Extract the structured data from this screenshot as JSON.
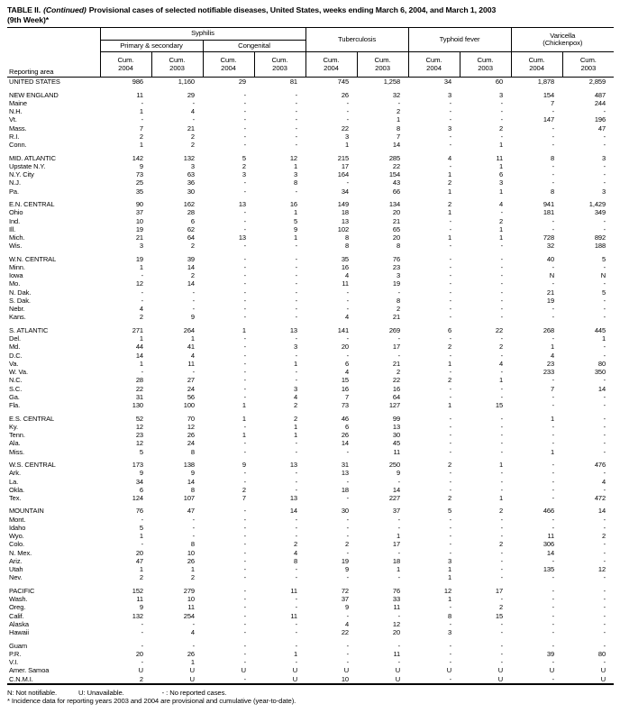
{
  "colors": {
    "text": "#000000",
    "background": "#ffffff",
    "border": "#000000"
  },
  "title": {
    "table_label": "TABLE II.",
    "continued": "(Continued)",
    "main": "Provisional cases of selected notifiable diseases, United States, weeks ending March 6, 2004, and March 1, 2003",
    "line2": "(9th Week)*"
  },
  "header": {
    "reporting_area": "Reporting area",
    "syphilis": "Syphilis",
    "primary_secondary": "Primary & secondary",
    "congenital": "Congenital",
    "tuberculosis": "Tuberculosis",
    "typhoid_fever": "Typhoid fever",
    "varicella_line1": "Varicella",
    "varicella_line2": "(Chickenpox)",
    "cum": "Cum.",
    "years": [
      "2004",
      "2003",
      "2004",
      "2003",
      "2004",
      "2003",
      "2004",
      "2003",
      "2004",
      "2003"
    ]
  },
  "sections": [
    {
      "rows": [
        {
          "area": "UNITED STATES",
          "summary": true,
          "v": [
            "986",
            "1,160",
            "29",
            "81",
            "745",
            "1,258",
            "34",
            "60",
            "1,878",
            "2,859"
          ]
        }
      ]
    },
    {
      "rows": [
        {
          "area": "NEW ENGLAND",
          "summary": true,
          "v": [
            "11",
            "29",
            "-",
            "-",
            "26",
            "32",
            "3",
            "3",
            "154",
            "487"
          ]
        },
        {
          "area": "Maine",
          "v": [
            "-",
            "-",
            "-",
            "-",
            "-",
            "-",
            "-",
            "-",
            "7",
            "244"
          ]
        },
        {
          "area": "N.H.",
          "v": [
            "1",
            "4",
            "-",
            "-",
            "-",
            "2",
            "-",
            "-",
            "-",
            "-"
          ]
        },
        {
          "area": "Vt.",
          "v": [
            "-",
            "-",
            "-",
            "-",
            "-",
            "1",
            "-",
            "-",
            "147",
            "196"
          ]
        },
        {
          "area": "Mass.",
          "v": [
            "7",
            "21",
            "-",
            "-",
            "22",
            "8",
            "3",
            "2",
            "-",
            "47"
          ]
        },
        {
          "area": "R.I.",
          "v": [
            "2",
            "2",
            "-",
            "-",
            "3",
            "7",
            "-",
            "-",
            "-",
            "-"
          ]
        },
        {
          "area": "Conn.",
          "v": [
            "1",
            "2",
            "-",
            "-",
            "1",
            "14",
            "-",
            "1",
            "-",
            "-"
          ]
        }
      ]
    },
    {
      "rows": [
        {
          "area": "MID. ATLANTIC",
          "summary": true,
          "v": [
            "142",
            "132",
            "5",
            "12",
            "215",
            "285",
            "4",
            "11",
            "8",
            "3"
          ]
        },
        {
          "area": "Upstate N.Y.",
          "v": [
            "9",
            "3",
            "2",
            "1",
            "17",
            "22",
            "-",
            "1",
            "-",
            "-"
          ]
        },
        {
          "area": "N.Y. City",
          "v": [
            "73",
            "63",
            "3",
            "3",
            "164",
            "154",
            "1",
            "6",
            "-",
            "-"
          ]
        },
        {
          "area": "N.J.",
          "v": [
            "25",
            "36",
            "-",
            "8",
            "-",
            "43",
            "2",
            "3",
            "-",
            "-"
          ]
        },
        {
          "area": "Pa.",
          "v": [
            "35",
            "30",
            "-",
            "-",
            "34",
            "66",
            "1",
            "1",
            "8",
            "3"
          ]
        }
      ]
    },
    {
      "rows": [
        {
          "area": "E.N. CENTRAL",
          "summary": true,
          "v": [
            "90",
            "162",
            "13",
            "16",
            "149",
            "134",
            "2",
            "4",
            "941",
            "1,429"
          ]
        },
        {
          "area": "Ohio",
          "v": [
            "37",
            "28",
            "-",
            "1",
            "18",
            "20",
            "1",
            "-",
            "181",
            "349"
          ]
        },
        {
          "area": "Ind.",
          "v": [
            "10",
            "6",
            "-",
            "5",
            "13",
            "21",
            "-",
            "2",
            "-",
            "-"
          ]
        },
        {
          "area": "Ill.",
          "v": [
            "19",
            "62",
            "-",
            "9",
            "102",
            "65",
            "-",
            "1",
            "-",
            "-"
          ]
        },
        {
          "area": "Mich.",
          "v": [
            "21",
            "64",
            "13",
            "1",
            "8",
            "20",
            "1",
            "1",
            "728",
            "892"
          ]
        },
        {
          "area": "Wis.",
          "v": [
            "3",
            "2",
            "-",
            "-",
            "8",
            "8",
            "-",
            "-",
            "32",
            "188"
          ]
        }
      ]
    },
    {
      "rows": [
        {
          "area": "W.N. CENTRAL",
          "summary": true,
          "v": [
            "19",
            "39",
            "-",
            "-",
            "35",
            "76",
            "-",
            "-",
            "40",
            "5"
          ]
        },
        {
          "area": "Minn.",
          "v": [
            "1",
            "14",
            "-",
            "-",
            "16",
            "23",
            "-",
            "-",
            "-",
            "-"
          ]
        },
        {
          "area": "Iowa",
          "v": [
            "-",
            "2",
            "-",
            "-",
            "4",
            "3",
            "-",
            "-",
            "N",
            "N"
          ]
        },
        {
          "area": "Mo.",
          "v": [
            "12",
            "14",
            "-",
            "-",
            "11",
            "19",
            "-",
            "-",
            "-",
            "-"
          ]
        },
        {
          "area": "N. Dak.",
          "v": [
            "-",
            "-",
            "-",
            "-",
            "-",
            "-",
            "-",
            "-",
            "21",
            "5"
          ]
        },
        {
          "area": "S. Dak.",
          "v": [
            "-",
            "-",
            "-",
            "-",
            "-",
            "8",
            "-",
            "-",
            "19",
            "-"
          ]
        },
        {
          "area": "Nebr.",
          "v": [
            "4",
            "-",
            "-",
            "-",
            "-",
            "2",
            "-",
            "-",
            "-",
            "-"
          ]
        },
        {
          "area": "Kans.",
          "v": [
            "2",
            "9",
            "-",
            "-",
            "4",
            "21",
            "-",
            "-",
            "-",
            "-"
          ]
        }
      ]
    },
    {
      "rows": [
        {
          "area": "S. ATLANTIC",
          "summary": true,
          "v": [
            "271",
            "264",
            "1",
            "13",
            "141",
            "269",
            "6",
            "22",
            "268",
            "445"
          ]
        },
        {
          "area": "Del.",
          "v": [
            "1",
            "1",
            "-",
            "-",
            "-",
            "-",
            "-",
            "-",
            "-",
            "1"
          ]
        },
        {
          "area": "Md.",
          "v": [
            "44",
            "41",
            "-",
            "3",
            "20",
            "17",
            "2",
            "2",
            "1",
            "-"
          ]
        },
        {
          "area": "D.C.",
          "v": [
            "14",
            "4",
            "-",
            "-",
            "-",
            "-",
            "-",
            "-",
            "4",
            "-"
          ]
        },
        {
          "area": "Va.",
          "v": [
            "1",
            "11",
            "-",
            "1",
            "6",
            "21",
            "1",
            "4",
            "23",
            "80"
          ]
        },
        {
          "area": "W. Va.",
          "v": [
            "-",
            "-",
            "-",
            "-",
            "4",
            "2",
            "-",
            "-",
            "233",
            "350"
          ]
        },
        {
          "area": "N.C.",
          "v": [
            "28",
            "27",
            "-",
            "-",
            "15",
            "22",
            "2",
            "1",
            "-",
            "-"
          ]
        },
        {
          "area": "S.C.",
          "v": [
            "22",
            "24",
            "-",
            "3",
            "16",
            "16",
            "-",
            "-",
            "7",
            "14"
          ]
        },
        {
          "area": "Ga.",
          "v": [
            "31",
            "56",
            "-",
            "4",
            "7",
            "64",
            "-",
            "-",
            "-",
            "-"
          ]
        },
        {
          "area": "Fla.",
          "v": [
            "130",
            "100",
            "1",
            "2",
            "73",
            "127",
            "1",
            "15",
            "-",
            "-"
          ]
        }
      ]
    },
    {
      "rows": [
        {
          "area": "E.S. CENTRAL",
          "summary": true,
          "v": [
            "52",
            "70",
            "1",
            "2",
            "46",
            "99",
            "-",
            "-",
            "1",
            "-"
          ]
        },
        {
          "area": "Ky.",
          "v": [
            "12",
            "12",
            "-",
            "1",
            "6",
            "13",
            "-",
            "-",
            "-",
            "-"
          ]
        },
        {
          "area": "Tenn.",
          "v": [
            "23",
            "26",
            "1",
            "1",
            "26",
            "30",
            "-",
            "-",
            "-",
            "-"
          ]
        },
        {
          "area": "Ala.",
          "v": [
            "12",
            "24",
            "-",
            "-",
            "14",
            "45",
            "-",
            "-",
            "-",
            "-"
          ]
        },
        {
          "area": "Miss.",
          "v": [
            "5",
            "8",
            "-",
            "-",
            "-",
            "11",
            "-",
            "-",
            "1",
            "-"
          ]
        }
      ]
    },
    {
      "rows": [
        {
          "area": "W.S. CENTRAL",
          "summary": true,
          "v": [
            "173",
            "138",
            "9",
            "13",
            "31",
            "250",
            "2",
            "1",
            "-",
            "476"
          ]
        },
        {
          "area": "Ark.",
          "v": [
            "9",
            "9",
            "-",
            "-",
            "13",
            "9",
            "-",
            "-",
            "-",
            "-"
          ]
        },
        {
          "area": "La.",
          "v": [
            "34",
            "14",
            "-",
            "-",
            "-",
            "-",
            "-",
            "-",
            "-",
            "4"
          ]
        },
        {
          "area": "Okla.",
          "v": [
            "6",
            "8",
            "2",
            "-",
            "18",
            "14",
            "-",
            "-",
            "-",
            "-"
          ]
        },
        {
          "area": "Tex.",
          "v": [
            "124",
            "107",
            "7",
            "13",
            "-",
            "227",
            "2",
            "1",
            "-",
            "472"
          ]
        }
      ]
    },
    {
      "rows": [
        {
          "area": "MOUNTAIN",
          "summary": true,
          "v": [
            "76",
            "47",
            "-",
            "14",
            "30",
            "37",
            "5",
            "2",
            "466",
            "14"
          ]
        },
        {
          "area": "Mont.",
          "v": [
            "-",
            "-",
            "-",
            "-",
            "-",
            "-",
            "-",
            "-",
            "-",
            "-"
          ]
        },
        {
          "area": "Idaho",
          "v": [
            "5",
            "-",
            "-",
            "-",
            "-",
            "-",
            "-",
            "-",
            "-",
            "-"
          ]
        },
        {
          "area": "Wyo.",
          "v": [
            "1",
            "-",
            "-",
            "-",
            "-",
            "1",
            "-",
            "-",
            "11",
            "2"
          ]
        },
        {
          "area": "Colo.",
          "v": [
            "-",
            "8",
            "-",
            "2",
            "2",
            "17",
            "-",
            "2",
            "306",
            "-"
          ]
        },
        {
          "area": "N. Mex.",
          "v": [
            "20",
            "10",
            "-",
            "4",
            "-",
            "-",
            "-",
            "-",
            "14",
            "-"
          ]
        },
        {
          "area": "Ariz.",
          "v": [
            "47",
            "26",
            "-",
            "8",
            "19",
            "18",
            "3",
            "-",
            "-",
            "-"
          ]
        },
        {
          "area": "Utah",
          "v": [
            "1",
            "1",
            "-",
            "-",
            "9",
            "1",
            "1",
            "-",
            "135",
            "12"
          ]
        },
        {
          "area": "Nev.",
          "v": [
            "2",
            "2",
            "-",
            "-",
            "-",
            "-",
            "1",
            "-",
            "-",
            "-"
          ]
        }
      ]
    },
    {
      "rows": [
        {
          "area": "PACIFIC",
          "summary": true,
          "v": [
            "152",
            "279",
            "-",
            "11",
            "72",
            "76",
            "12",
            "17",
            "-",
            "-"
          ]
        },
        {
          "area": "Wash.",
          "v": [
            "11",
            "10",
            "-",
            "-",
            "37",
            "33",
            "1",
            "-",
            "-",
            "-"
          ]
        },
        {
          "area": "Oreg.",
          "v": [
            "9",
            "11",
            "-",
            "-",
            "9",
            "11",
            "-",
            "2",
            "-",
            "-"
          ]
        },
        {
          "area": "Calif.",
          "v": [
            "132",
            "254",
            "-",
            "11",
            "-",
            "-",
            "8",
            "15",
            "-",
            "-"
          ]
        },
        {
          "area": "Alaska",
          "v": [
            "-",
            "-",
            "-",
            "-",
            "4",
            "12",
            "-",
            "-",
            "-",
            "-"
          ]
        },
        {
          "area": "Hawaii",
          "v": [
            "-",
            "4",
            "-",
            "-",
            "22",
            "20",
            "3",
            "-",
            "-",
            "-"
          ]
        }
      ]
    },
    {
      "rows": [
        {
          "area": "Guam",
          "v": [
            "-",
            "-",
            "-",
            "-",
            "-",
            "-",
            "-",
            "-",
            "-",
            "-"
          ]
        },
        {
          "area": "P.R.",
          "v": [
            "20",
            "26",
            "-",
            "1",
            "-",
            "11",
            "-",
            "-",
            "39",
            "80"
          ]
        },
        {
          "area": "V.I.",
          "v": [
            "-",
            "1",
            "-",
            "-",
            "-",
            "-",
            "-",
            "-",
            "-",
            "-"
          ]
        },
        {
          "area": "Amer. Samoa",
          "v": [
            "U",
            "U",
            "U",
            "U",
            "U",
            "U",
            "U",
            "U",
            "U",
            "U"
          ]
        },
        {
          "area": "C.N.M.I.",
          "v": [
            "2",
            "U",
            "-",
            "U",
            "10",
            "U",
            "-",
            "U",
            "-",
            "U"
          ]
        }
      ]
    }
  ],
  "footnotes": {
    "legend_n": "N: Not notifiable.",
    "legend_u": "U: Unavailable.",
    "legend_dash": "- : No reported cases.",
    "note": "* Incidence data for reporting years 2003 and 2004 are provisional and cumulative (year-to-date)."
  }
}
